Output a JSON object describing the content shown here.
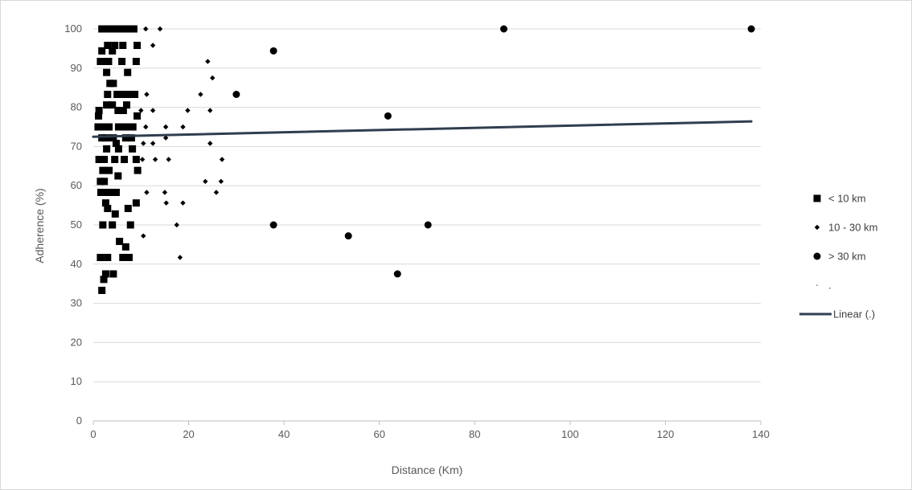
{
  "chart_data": {
    "type": "scatter",
    "title": "",
    "xlabel": "Distance (Km)",
    "ylabel": "Adherence (%)",
    "xlim": [
      0,
      140
    ],
    "ylim": [
      0,
      100
    ],
    "x_ticks": [
      "0",
      "20",
      "40",
      "60",
      "80",
      "100",
      "120",
      "140"
    ],
    "y_ticks": [
      "0",
      "10",
      "20",
      "30",
      "40",
      "50",
      "60",
      "70",
      "80",
      "90",
      "100"
    ],
    "grid": "horizontal",
    "legend_position": "right",
    "colors": {
      "markers": "#000000",
      "trendline": "#2f3e50",
      "grid": "#d9d9d9",
      "axis": "#bfbfbf"
    },
    "series": [
      {
        "name": "< 10 km",
        "marker": "square",
        "points": [
          [
            1.8,
            100
          ],
          [
            2.5,
            100
          ],
          [
            3,
            100
          ],
          [
            4,
            100
          ],
          [
            5,
            100
          ],
          [
            6,
            100
          ],
          [
            7.5,
            100
          ],
          [
            8.5,
            100
          ],
          [
            3,
            95.8
          ],
          [
            4.5,
            95.8
          ],
          [
            6.2,
            95.8
          ],
          [
            9.2,
            95.8
          ],
          [
            1.8,
            94.4
          ],
          [
            4,
            94.4
          ],
          [
            1.5,
            91.7
          ],
          [
            2.5,
            91.7
          ],
          [
            3.2,
            91.7
          ],
          [
            6,
            91.7
          ],
          [
            9,
            91.7
          ],
          [
            2.8,
            88.9
          ],
          [
            7.2,
            88.9
          ],
          [
            3.5,
            86.1
          ],
          [
            4.2,
            86.1
          ],
          [
            3,
            83.3
          ],
          [
            5,
            83.3
          ],
          [
            6.2,
            83.3
          ],
          [
            7.3,
            83.3
          ],
          [
            8.7,
            83.3
          ],
          [
            2.8,
            80.6
          ],
          [
            4,
            80.6
          ],
          [
            7,
            80.6
          ],
          [
            1.2,
            79.2
          ],
          [
            5.2,
            79.2
          ],
          [
            6.3,
            79.2
          ],
          [
            1.1,
            77.8
          ],
          [
            9.2,
            77.8
          ],
          [
            1,
            75
          ],
          [
            2,
            75
          ],
          [
            3.3,
            75
          ],
          [
            5.3,
            75
          ],
          [
            6.5,
            75
          ],
          [
            7.3,
            75
          ],
          [
            8.3,
            75
          ],
          [
            1.8,
            72.2
          ],
          [
            2.7,
            72.2
          ],
          [
            4.2,
            72.2
          ],
          [
            6.8,
            72.2
          ],
          [
            8,
            72.2
          ],
          [
            4.8,
            70.8
          ],
          [
            2.8,
            69.4
          ],
          [
            5.3,
            69.4
          ],
          [
            8.2,
            69.4
          ],
          [
            1.2,
            66.7
          ],
          [
            2.3,
            66.7
          ],
          [
            4.5,
            66.7
          ],
          [
            6.5,
            66.7
          ],
          [
            9,
            66.7
          ],
          [
            2,
            63.9
          ],
          [
            3.3,
            63.9
          ],
          [
            9.3,
            63.9
          ],
          [
            5.2,
            62.5
          ],
          [
            1.5,
            61.1
          ],
          [
            2.3,
            61.1
          ],
          [
            1.6,
            58.3
          ],
          [
            2.7,
            58.3
          ],
          [
            3.5,
            58.3
          ],
          [
            4.8,
            58.3
          ],
          [
            2.6,
            55.6
          ],
          [
            9,
            55.6
          ],
          [
            3,
            54.2
          ],
          [
            7.3,
            54.2
          ],
          [
            4.6,
            52.8
          ],
          [
            2,
            50
          ],
          [
            4,
            50
          ],
          [
            7.8,
            50
          ],
          [
            5.5,
            45.8
          ],
          [
            6.8,
            44.4
          ],
          [
            1.5,
            41.7
          ],
          [
            3,
            41.7
          ],
          [
            6.2,
            41.7
          ],
          [
            7.5,
            41.7
          ],
          [
            4.2,
            37.5
          ],
          [
            2.6,
            37.5
          ],
          [
            2.2,
            36.1
          ],
          [
            1.8,
            33.3
          ]
        ]
      },
      {
        "name": "10 - 30 km",
        "marker": "diamond",
        "points": [
          [
            11,
            100
          ],
          [
            14,
            100
          ],
          [
            12.5,
            95.8
          ],
          [
            24,
            91.7
          ],
          [
            25,
            87.5
          ],
          [
            11.2,
            83.3
          ],
          [
            22.5,
            83.3
          ],
          [
            10,
            79.2
          ],
          [
            12.5,
            79.2
          ],
          [
            19.8,
            79.2
          ],
          [
            24.5,
            79.2
          ],
          [
            11,
            75
          ],
          [
            15.2,
            75
          ],
          [
            18.8,
            75
          ],
          [
            15.2,
            72.2
          ],
          [
            10.5,
            70.8
          ],
          [
            12.5,
            70.8
          ],
          [
            24.5,
            70.8
          ],
          [
            10.3,
            66.7
          ],
          [
            13,
            66.7
          ],
          [
            15.8,
            66.7
          ],
          [
            27,
            66.7
          ],
          [
            23.5,
            61.1
          ],
          [
            26.8,
            61.1
          ],
          [
            11.2,
            58.3
          ],
          [
            15,
            58.3
          ],
          [
            25.8,
            58.3
          ],
          [
            15.3,
            55.6
          ],
          [
            18.8,
            55.6
          ],
          [
            17.5,
            50
          ],
          [
            10.5,
            47.2
          ],
          [
            18.2,
            41.7
          ]
        ]
      },
      {
        "name": "> 30 km",
        "marker": "circle",
        "points": [
          [
            86.1,
            100
          ],
          [
            138,
            100
          ],
          [
            37.8,
            94.4
          ],
          [
            30,
            83.3
          ],
          [
            61.8,
            77.8
          ],
          [
            37.8,
            50
          ],
          [
            70.2,
            50
          ],
          [
            53.5,
            47.2
          ],
          [
            63.8,
            37.5
          ]
        ]
      },
      {
        "name": ".",
        "marker": "none",
        "points": []
      }
    ],
    "trendline": {
      "name": "Linear (.)",
      "type": "linear",
      "from": [
        0,
        72.5
      ],
      "to": [
        138,
        76.4
      ]
    }
  }
}
